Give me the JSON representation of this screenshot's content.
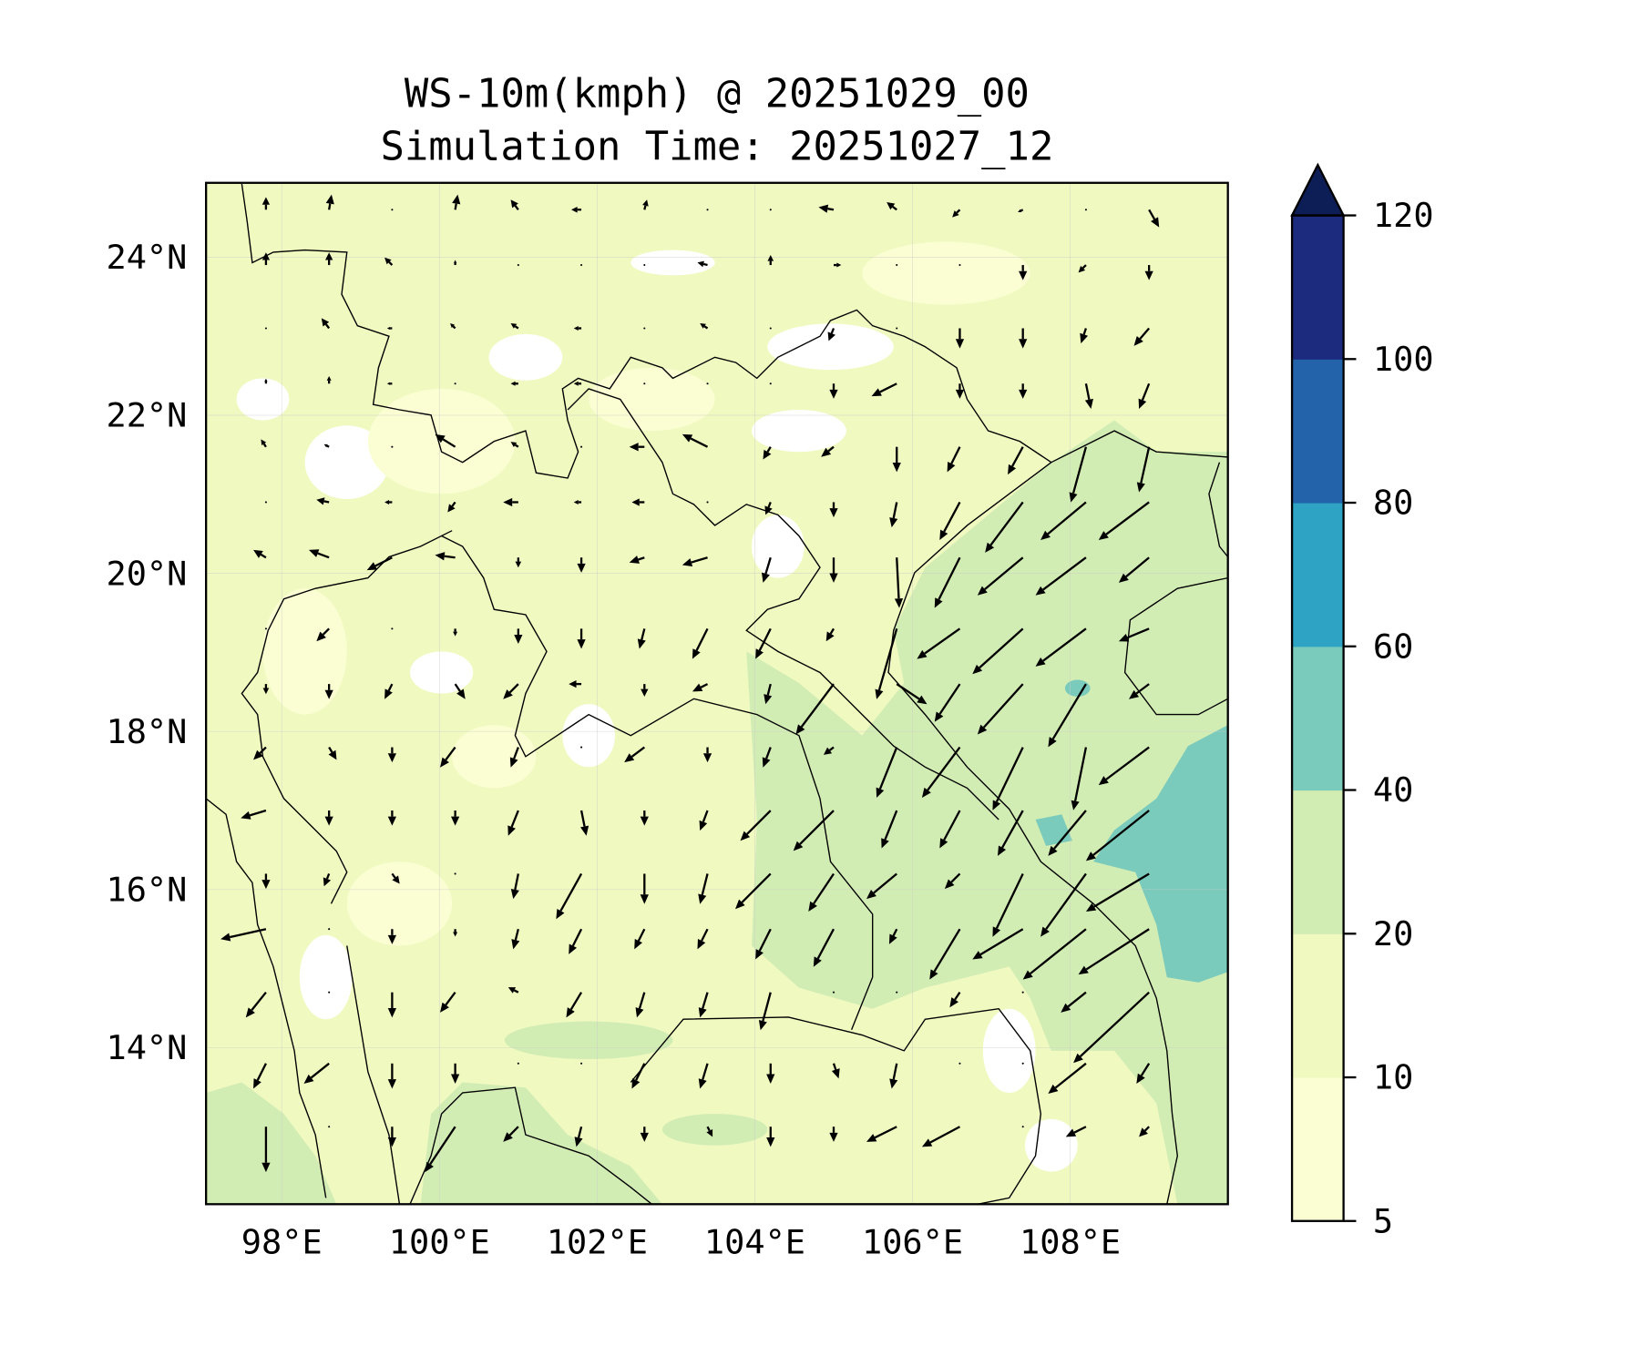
{
  "chart_data": {
    "type": "heatmap",
    "subtype": "filled-contour map with wind vectors",
    "title": "WS-10m(kmph) @ 20251029_00",
    "subtitle": "Simulation Time: 20251027_12",
    "xlabel": "",
    "ylabel": "",
    "xlim": [
      97.04,
      110.0
    ],
    "ylim": [
      12.02,
      24.94
    ],
    "xticks": [
      98,
      100,
      102,
      104,
      106,
      108
    ],
    "xtick_labels": [
      "98°E",
      "100°E",
      "102°E",
      "104°E",
      "106°E",
      "108°E"
    ],
    "yticks": [
      24,
      22,
      20,
      18,
      16,
      14
    ],
    "ytick_labels": [
      "24°N",
      "22°N",
      "20°N",
      "18°N",
      "16°N",
      "14°N"
    ],
    "grid": true,
    "colorbar": {
      "placement": "right",
      "levels": [
        5,
        10,
        20,
        40,
        60,
        80,
        100,
        120
      ],
      "tick_labels": [
        "5",
        "10",
        "20",
        "40",
        "60",
        "80",
        "100",
        "120"
      ],
      "colors": [
        "#fbfed2",
        "#f0f9c0",
        "#d2edb4",
        "#7acbbc",
        "#2fa3c4",
        "#2263a9",
        "#1c2b7e"
      ],
      "extend_color": "#0c1e55",
      "extend": "max"
    },
    "field_colors": {
      "below_min": "#ffffff",
      "lt10": "#fbfed2",
      "10_20": "#f0f9c0",
      "20_40": "#d2edb4",
      "40_60": "#7acbbc"
    },
    "vectors": {
      "units": "kmph",
      "lons": [
        97.8,
        98.6,
        99.4,
        100.2,
        101.0,
        101.8,
        102.6,
        103.4,
        104.2,
        105.0,
        105.8,
        106.6,
        107.4,
        108.2,
        109.0
      ],
      "lats": [
        24.6,
        23.9,
        23.1,
        22.4,
        21.6,
        20.9,
        20.2,
        19.3,
        18.6,
        17.8,
        17.0,
        16.2,
        15.5,
        14.7,
        13.8,
        13.0
      ],
      "uv": [
        [
          [
            0,
            5
          ],
          [
            1,
            6
          ],
          [
            0,
            0
          ],
          [
            1,
            6
          ],
          [
            -3,
            4
          ],
          [
            -4,
            0
          ],
          [
            1,
            4
          ],
          [
            0,
            0
          ],
          [
            0,
            0
          ],
          [
            -6,
            1
          ],
          [
            -4,
            3
          ],
          [
            -3,
            -3
          ],
          [
            -2,
            -1
          ],
          [
            0,
            0
          ],
          [
            4,
            -7
          ]
        ],
        [
          [
            0,
            5
          ],
          [
            0,
            5
          ],
          [
            -3,
            3
          ],
          [
            0,
            2
          ],
          [
            0,
            0
          ],
          [
            0,
            0
          ],
          [
            0,
            0
          ],
          [
            -4,
            1
          ],
          [
            0,
            4
          ],
          [
            3,
            0
          ],
          [
            0,
            0
          ],
          [
            0,
            0
          ],
          [
            0,
            -6
          ],
          [
            -3,
            -3
          ],
          [
            0,
            -6
          ]
        ],
        [
          [
            0,
            0
          ],
          [
            -3,
            4
          ],
          [
            -2,
            0
          ],
          [
            -2,
            2
          ],
          [
            -3,
            2
          ],
          [
            -3,
            0
          ],
          [
            0,
            0
          ],
          [
            -3,
            2
          ],
          [
            0,
            0
          ],
          [
            -2,
            -5
          ],
          [
            0,
            0
          ],
          [
            0,
            -8
          ],
          [
            0,
            -8
          ],
          [
            -2,
            -6
          ],
          [
            -6,
            -7
          ]
        ],
        [
          [
            0,
            2
          ],
          [
            0,
            3
          ],
          [
            -2,
            0
          ],
          [
            0,
            0
          ],
          [
            -3,
            0
          ],
          [
            -3,
            0
          ],
          [
            0,
            0
          ],
          [
            0,
            0
          ],
          [
            0,
            0
          ],
          [
            0,
            -6
          ],
          [
            -10,
            -5
          ],
          [
            0,
            -6
          ],
          [
            0,
            -6
          ],
          [
            2,
            -10
          ],
          [
            -4,
            -10
          ]
        ],
        [
          [
            -2,
            3
          ],
          [
            -2,
            1
          ],
          [
            0,
            0
          ],
          [
            -8,
            5
          ],
          [
            -3,
            2
          ],
          [
            0,
            0
          ],
          [
            -6,
            0
          ],
          [
            -10,
            5
          ],
          [
            -3,
            -5
          ],
          [
            -5,
            -4
          ],
          [
            0,
            -10
          ],
          [
            -5,
            -10
          ],
          [
            -6,
            -11
          ],
          [
            -6,
            -22
          ],
          [
            -4,
            -18
          ]
        ],
        [
          [
            0,
            0
          ],
          [
            -5,
            1
          ],
          [
            -3,
            0
          ],
          [
            -3,
            -4
          ],
          [
            -6,
            0
          ],
          [
            -3,
            0
          ],
          [
            -5,
            0
          ],
          [
            0,
            0
          ],
          [
            -2,
            -5
          ],
          [
            0,
            -6
          ],
          [
            -2,
            -10
          ],
          [
            -8,
            -15
          ],
          [
            -15,
            -20
          ],
          [
            -18,
            -15
          ],
          [
            -20,
            -15
          ]
        ],
        [
          [
            -5,
            3
          ],
          [
            -8,
            3
          ],
          [
            -10,
            -5
          ],
          [
            -8,
            1
          ],
          [
            0,
            -4
          ],
          [
            0,
            -6
          ],
          [
            -6,
            -2
          ],
          [
            -10,
            -3
          ],
          [
            -3,
            -10
          ],
          [
            0,
            -10
          ],
          [
            1,
            -20
          ],
          [
            -10,
            -20
          ],
          [
            -18,
            -15
          ],
          [
            -20,
            -15
          ],
          [
            -12,
            -10
          ]
        ],
        [
          [
            0,
            0
          ],
          [
            -5,
            -5
          ],
          [
            0,
            0
          ],
          [
            0,
            -3
          ],
          [
            0,
            -6
          ],
          [
            0,
            -8
          ],
          [
            -2,
            -8
          ],
          [
            -6,
            -12
          ],
          [
            -6,
            -12
          ],
          [
            -3,
            -5
          ],
          [
            -8,
            -28
          ],
          [
            -17,
            -12
          ],
          [
            -20,
            -18
          ],
          [
            -20,
            -15
          ],
          [
            -12,
            -5
          ]
        ],
        [
          [
            0,
            -4
          ],
          [
            0,
            -6
          ],
          [
            -3,
            -6
          ],
          [
            4,
            -6
          ],
          [
            -6,
            -6
          ],
          [
            -5,
            0
          ],
          [
            0,
            -5
          ],
          [
            -6,
            -3
          ],
          [
            -2,
            -8
          ],
          [
            -15,
            -20
          ],
          [
            12,
            -8
          ],
          [
            -10,
            -15
          ],
          [
            -18,
            -20
          ],
          [
            -15,
            -25
          ],
          [
            -8,
            -6
          ]
        ],
        [
          [
            -5,
            -5
          ],
          [
            3,
            -5
          ],
          [
            0,
            -6
          ],
          [
            -6,
            -8
          ],
          [
            -3,
            -8
          ],
          [
            0,
            0
          ],
          [
            -8,
            -6
          ],
          [
            0,
            -6
          ],
          [
            -3,
            -8
          ],
          [
            -4,
            -3
          ],
          [
            -8,
            -20
          ],
          [
            -15,
            -20
          ],
          [
            -12,
            -25
          ],
          [
            -5,
            -25
          ],
          [
            -20,
            -15
          ]
        ],
        [
          [
            -10,
            -3
          ],
          [
            0,
            -6
          ],
          [
            0,
            -6
          ],
          [
            0,
            -6
          ],
          [
            -4,
            -10
          ],
          [
            2,
            -10
          ],
          [
            0,
            -6
          ],
          [
            -3,
            -8
          ],
          [
            -12,
            -12
          ],
          [
            -16,
            -16
          ],
          [
            -6,
            -15
          ],
          [
            -8,
            -15
          ],
          [
            -10,
            -18
          ],
          [
            -15,
            -18
          ],
          [
            -25,
            -20
          ]
        ],
        [
          [
            0,
            -6
          ],
          [
            -2,
            -5
          ],
          [
            3,
            -4
          ],
          [
            0,
            0
          ],
          [
            -2,
            -10
          ],
          [
            -10,
            -18
          ],
          [
            0,
            -12
          ],
          [
            -3,
            -12
          ],
          [
            -14,
            -14
          ],
          [
            -10,
            -15
          ],
          [
            -12,
            -10
          ],
          [
            -6,
            -6
          ],
          [
            -12,
            -25
          ],
          [
            -18,
            -25
          ],
          [
            -25,
            -15
          ]
        ],
        [
          [
            -18,
            -4
          ],
          [
            0,
            0
          ],
          [
            0,
            -6
          ],
          [
            0,
            -3
          ],
          [
            -2,
            -8
          ],
          [
            -5,
            -10
          ],
          [
            -4,
            -8
          ],
          [
            -4,
            -8
          ],
          [
            -6,
            -12
          ],
          [
            -8,
            -15
          ],
          [
            -3,
            -6
          ],
          [
            -12,
            -20
          ],
          [
            -20,
            -12
          ],
          [
            -25,
            -20
          ],
          [
            -28,
            -18
          ]
        ],
        [
          [
            -8,
            -10
          ],
          [
            0,
            0
          ],
          [
            0,
            -10
          ],
          [
            -6,
            -8
          ],
          [
            -4,
            2
          ],
          [
            -6,
            -10
          ],
          [
            -3,
            -10
          ],
          [
            -3,
            -10
          ],
          [
            -4,
            -15
          ],
          [
            0,
            0
          ],
          [
            0,
            0
          ],
          [
            -4,
            -6
          ],
          [
            0,
            0
          ],
          [
            -10,
            -8
          ],
          [
            -30,
            -28
          ]
        ],
        [
          [
            -5,
            -10
          ],
          [
            -10,
            -8
          ],
          [
            0,
            -10
          ],
          [
            0,
            -8
          ],
          [
            0,
            0
          ],
          [
            0,
            0
          ],
          [
            -5,
            -10
          ],
          [
            -3,
            -10
          ],
          [
            0,
            -8
          ],
          [
            2,
            -6
          ],
          [
            -2,
            -10
          ],
          [
            0,
            0
          ],
          [
            0,
            0
          ],
          [
            -15,
            -12
          ],
          [
            -5,
            -8
          ]
        ],
        [
          [
            0,
            -18
          ],
          [
            0,
            0
          ],
          [
            0,
            -8
          ],
          [
            -12,
            -18
          ],
          [
            -6,
            -6
          ],
          [
            -2,
            -8
          ],
          [
            0,
            -6
          ],
          [
            2,
            -4
          ],
          [
            0,
            -8
          ],
          [
            0,
            -6
          ],
          [
            -12,
            -6
          ],
          [
            -15,
            -8
          ],
          [
            0,
            0
          ],
          [
            -8,
            -4
          ],
          [
            -4,
            -4
          ]
        ]
      ]
    }
  }
}
